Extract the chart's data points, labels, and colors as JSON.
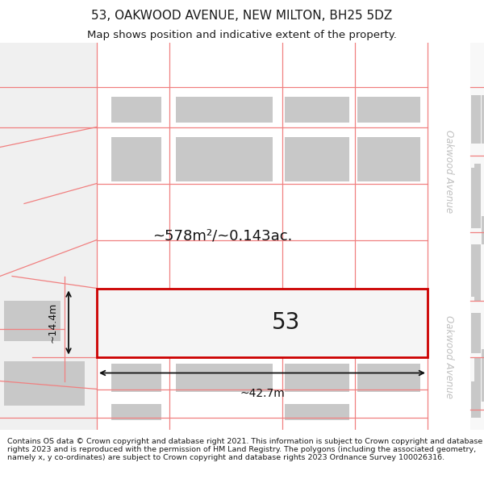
{
  "title": "53, OAKWOOD AVENUE, NEW MILTON, BH25 5DZ",
  "subtitle": "Map shows position and indicative extent of the property.",
  "footer": "Contains OS data © Crown copyright and database right 2021. This information is subject to Crown copyright and database rights 2023 and is reproduced with the permission of HM Land Registry. The polygons (including the associated geometry, namely x, y co-ordinates) are subject to Crown copyright and database rights 2023 Ordnance Survey 100026316.",
  "bg_color": "#ffffff",
  "map_bg": "#f5f5f5",
  "road_color": "#ffffff",
  "plot_outline_color": "#e03030",
  "building_fill": "#cccccc",
  "street_label_color": "#c0c0c0",
  "area_label": "~578m²/~0.143ac.",
  "width_label": "~42.7m",
  "height_label": "~14.4m",
  "title_fontsize": 11,
  "subtitle_fontsize": 9.5,
  "footer_fontsize": 6.8
}
